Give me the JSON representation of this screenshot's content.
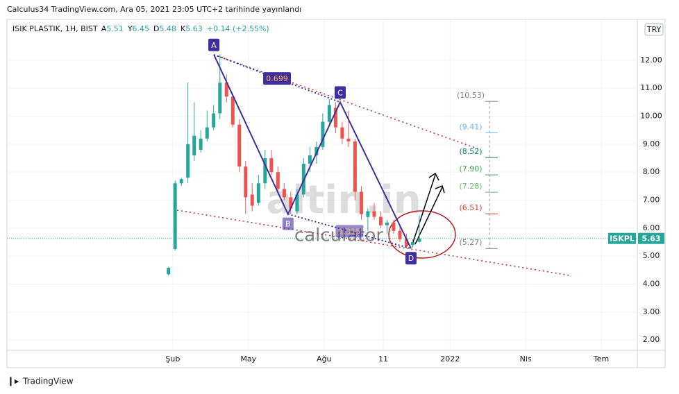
{
  "header": "Calculus34 TradingView.com, Ara 05, 2021 23:05 UTC+2 tarihinde yayınlandı",
  "footer_logo": "TradingView",
  "chart_data": {
    "type": "candlestick",
    "symbol": "ISIK PLASTIK, 1H, BIST",
    "legend": {
      "open_label": "A",
      "open": 5.51,
      "high_label": "Y",
      "high": 6.45,
      "low_label": "D",
      "low": 5.48,
      "close_label": "K",
      "close": 5.63,
      "change": "+0.14 (+2.55%)"
    },
    "currency": "TRY",
    "ticker": "ISKPL",
    "watermark": [
      "altin.in",
      "calculator"
    ],
    "up_color": "#26a69a",
    "down_color": "#ef5350",
    "grid": true,
    "ylim": [
      1.63,
      13.46
    ],
    "yticks": [
      {
        "value": 2,
        "label": "2.00"
      },
      {
        "value": 3,
        "label": "3.00"
      },
      {
        "value": 4,
        "label": "4.00"
      },
      {
        "value": 5,
        "label": "5.00"
      },
      {
        "value": 6,
        "label": "6.00"
      },
      {
        "value": 7,
        "label": "7.00"
      },
      {
        "value": 8,
        "label": "8.00"
      },
      {
        "value": 9,
        "label": "9.00"
      },
      {
        "value": 10,
        "label": "10.00"
      },
      {
        "value": 11,
        "label": "11.00"
      },
      {
        "value": 12,
        "label": "12.00"
      }
    ],
    "xlim": [
      -5.58,
      19.43
    ],
    "xticks": [
      {
        "value": 1,
        "label": "Şub"
      },
      {
        "value": 4,
        "label": "May"
      },
      {
        "value": 7,
        "label": "Ağu"
      },
      {
        "value": 9.35,
        "label": "11"
      },
      {
        "value": 12,
        "label": "2022"
      },
      {
        "value": 15,
        "label": "Nis"
      },
      {
        "value": 18,
        "label": "Tem"
      }
    ],
    "x": [
      0.83,
      1.09,
      1.34,
      1.6,
      1.85,
      2.11,
      2.36,
      2.62,
      2.87,
      3.13,
      3.38,
      3.64,
      3.89,
      4.15,
      4.4,
      4.66,
      4.91,
      5.17,
      5.42,
      5.68,
      5.93,
      6.19,
      6.44,
      6.7,
      6.95,
      7.21,
      7.46,
      7.72,
      7.97,
      8.23,
      8.48,
      8.74,
      8.99,
      9.25,
      9.5,
      9.76,
      10.01,
      10.27,
      10.52,
      10.78
    ],
    "open": [
      4.35,
      5.25,
      7.6,
      7.8,
      8.6,
      8.8,
      9.2,
      9.6,
      10.1,
      11.2,
      10.7,
      9.7,
      8.2,
      7.2,
      6.9,
      7.6,
      8.5,
      8.0,
      7.4,
      7.1,
      6.6,
      7.2,
      8.3,
      8.6,
      8.9,
      9.8,
      10.3,
      9.6,
      9.2,
      9.1,
      7.3,
      6.4,
      6.6,
      6.4,
      6.1,
      6.2,
      5.9,
      5.6,
      5.4,
      5.51
    ],
    "high": [
      4.62,
      7.7,
      7.8,
      11.2,
      10.5,
      9.5,
      10.2,
      10.4,
      12.2,
      11.5,
      10.8,
      9.9,
      8.4,
      7.6,
      7.9,
      8.8,
      8.8,
      8.2,
      7.6,
      7.3,
      7.4,
      8.5,
      8.9,
      9.1,
      10.1,
      10.6,
      10.5,
      9.8,
      10.2,
      9.2,
      7.5,
      6.7,
      6.9,
      6.6,
      6.3,
      6.3,
      6.1,
      5.8,
      5.6,
      6.45
    ],
    "low": [
      4.3,
      5.2,
      7.5,
      7.6,
      8.4,
      8.7,
      9.1,
      9.5,
      9.9,
      10.5,
      9.6,
      8.0,
      6.5,
      6.6,
      6.8,
      7.4,
      7.9,
      7.3,
      7.0,
      6.5,
      6.5,
      7.1,
      8.0,
      8.3,
      8.8,
      9.7,
      9.4,
      9.0,
      8.9,
      7.0,
      6.3,
      5.9,
      6.3,
      6.0,
      5.8,
      5.8,
      5.5,
      5.27,
      5.3,
      5.48
    ],
    "close": [
      4.58,
      7.6,
      7.75,
      9.0,
      9.3,
      9.2,
      9.6,
      10.1,
      11.2,
      10.7,
      9.7,
      8.2,
      7.1,
      6.8,
      7.6,
      8.5,
      8.0,
      7.4,
      7.1,
      6.7,
      7.2,
      8.3,
      8.6,
      8.9,
      9.8,
      10.4,
      9.6,
      9.2,
      9.1,
      7.3,
      6.5,
      6.6,
      6.4,
      6.1,
      6.2,
      5.9,
      5.6,
      5.35,
      5.5,
      5.63
    ],
    "pattern": {
      "color": "#3f2e9e",
      "labels": [
        "A",
        "B",
        "C",
        "D"
      ],
      "x": [
        2.63,
        5.57,
        7.64,
        10.45
      ],
      "y": [
        12.2,
        6.5,
        10.5,
        5.27
      ],
      "ratios": [
        0.699,
        1.315
      ]
    },
    "trendlines": [
      {
        "color": "#c62828",
        "x": [
          2.63,
          13.15
        ],
        "y": [
          12.2,
          8.82
        ]
      },
      {
        "color": "#c62828",
        "x": [
          1.17,
          16.73
        ],
        "y": [
          6.64,
          4.31
        ]
      }
    ],
    "fib_levels": [
      {
        "value": 10.53,
        "label": "(10.53)",
        "color": "#808080"
      },
      {
        "value": 9.41,
        "label": "(9.41)",
        "color": "#64b5f6"
      },
      {
        "value": 8.52,
        "label": "(8.52)",
        "color": "#00796b"
      },
      {
        "value": 7.9,
        "label": "(7.90)",
        "color": "#43a047"
      },
      {
        "value": 7.28,
        "label": "(7.28)",
        "color": "#66bb6a"
      },
      {
        "value": 6.51,
        "label": "(6.51)",
        "color": "#e53935"
      },
      {
        "value": 5.27,
        "label": "(5.27)",
        "color": "#808080"
      }
    ]
  }
}
